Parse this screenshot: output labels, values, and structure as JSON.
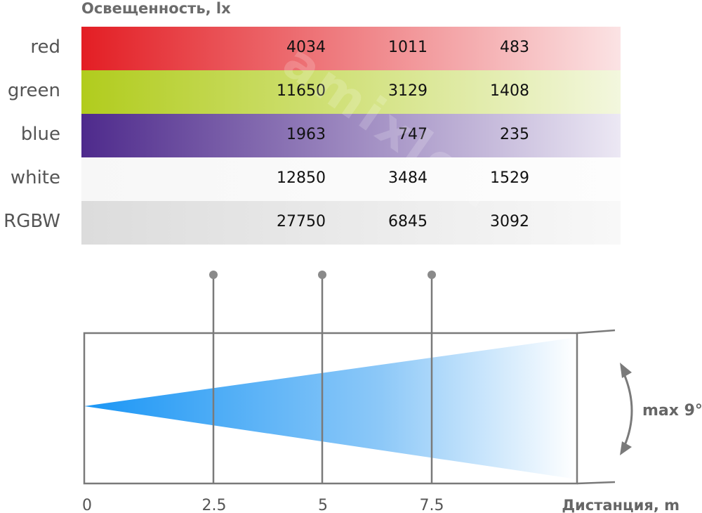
{
  "title": "Освещенность, lx",
  "rows": [
    {
      "label": "red",
      "values": [
        "4034",
        "1011",
        "483"
      ],
      "color_from": "#e31e24",
      "color_to": "#fbe3e4"
    },
    {
      "label": "green",
      "values": [
        "11650",
        "3129",
        "1408"
      ],
      "color_from": "#b1cc1d",
      "color_to": "#f3f7de"
    },
    {
      "label": "blue",
      "values": [
        "1963",
        "747",
        "235"
      ],
      "color_from": "#4e2a8c",
      "color_to": "#ece8f4"
    },
    {
      "label": "white",
      "values": [
        "12850",
        "3484",
        "1529"
      ],
      "color_from": "#f7f7f7",
      "color_to": "#fdfdfd"
    },
    {
      "label": "RGBW",
      "values": [
        "27750",
        "6845",
        "3092"
      ],
      "color_from": "#dcdcdc",
      "color_to": "#f8f8f8"
    }
  ],
  "diagram": {
    "ticks": [
      "0",
      "2.5",
      "5",
      "7.5"
    ],
    "axis_label": "Дистанция, m",
    "angle_label": "max 9°",
    "beam_color": "#1a96f5"
  },
  "watermark": "amixled"
}
